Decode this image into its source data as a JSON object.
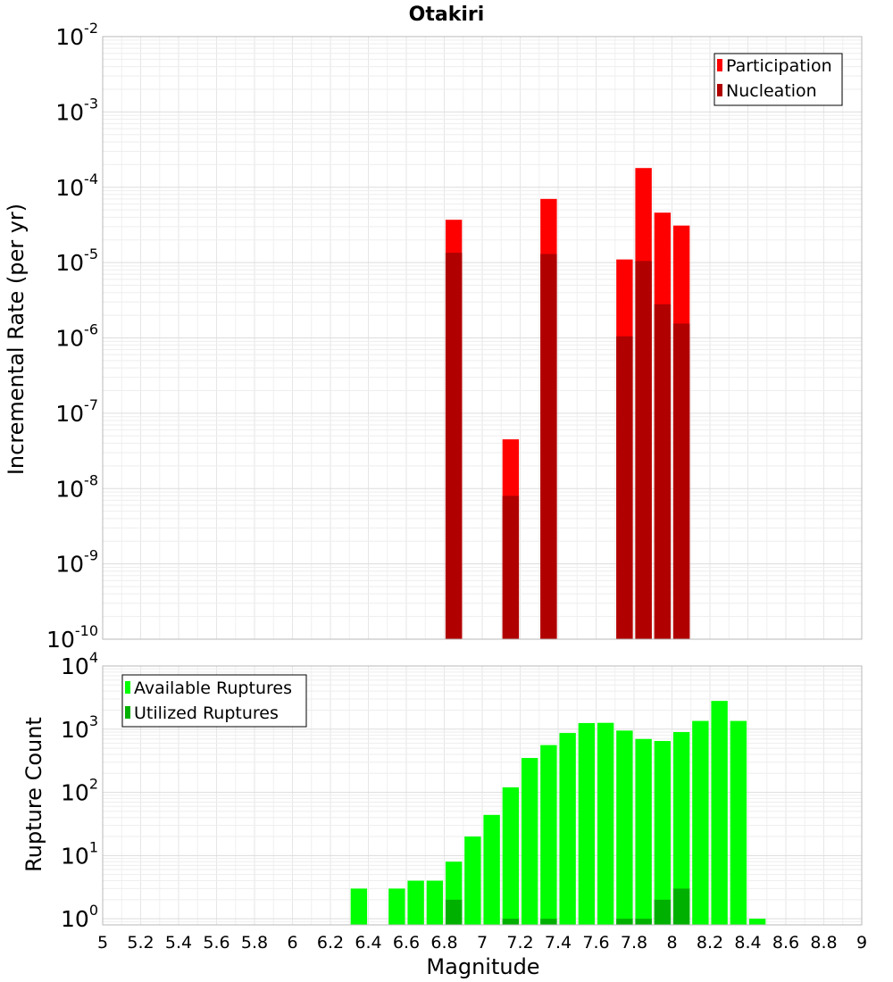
{
  "chart_data": [
    {
      "type": "bar",
      "title": "Otakiri",
      "xlabel": "",
      "ylabel": "Incremental Rate (per yr)",
      "yscale": "log",
      "ylim": [
        1e-10,
        0.01
      ],
      "xlim": [
        5,
        9
      ],
      "grid": true,
      "legend_position": "top-right",
      "y_ticks": [
        {
          "base": "10",
          "exp": "-10"
        },
        {
          "base": "10",
          "exp": "-9"
        },
        {
          "base": "10",
          "exp": "-8"
        },
        {
          "base": "10",
          "exp": "-7"
        },
        {
          "base": "10",
          "exp": "-6"
        },
        {
          "base": "10",
          "exp": "-5"
        },
        {
          "base": "10",
          "exp": "-4"
        },
        {
          "base": "10",
          "exp": "-3"
        },
        {
          "base": "10",
          "exp": "-2"
        }
      ],
      "series": [
        {
          "name": "Participation",
          "color": "#ff0000",
          "x": [
            6.85,
            7.15,
            7.35,
            7.75,
            7.85,
            7.95,
            8.05
          ],
          "values": [
            3.7e-05,
            4.5e-08,
            7e-05,
            1.1e-05,
            0.00018,
            4.6e-05,
            3.1e-05
          ]
        },
        {
          "name": "Nucleation",
          "color": "#b00000",
          "x": [
            6.85,
            7.15,
            7.35,
            7.75,
            7.85,
            7.95,
            8.05
          ],
          "values": [
            1.35e-05,
            8e-09,
            1.3e-05,
            1.05e-06,
            1.05e-05,
            2.8e-06,
            1.55e-06
          ]
        }
      ]
    },
    {
      "type": "bar",
      "title": "",
      "xlabel": "Magnitude",
      "ylabel": "Rupture Count",
      "yscale": "log",
      "ylim": [
        0.8,
        10000
      ],
      "xlim": [
        5,
        9
      ],
      "grid": true,
      "legend_position": "top-left",
      "y_ticks": [
        {
          "base": "10",
          "exp": "0"
        },
        {
          "base": "10",
          "exp": "1"
        },
        {
          "base": "10",
          "exp": "2"
        },
        {
          "base": "10",
          "exp": "3"
        },
        {
          "base": "10",
          "exp": "4"
        }
      ],
      "x_ticks": [
        "5",
        "5.2",
        "5.4",
        "5.6",
        "5.8",
        "6",
        "6.2",
        "6.4",
        "6.6",
        "6.8",
        "7",
        "7.2",
        "7.4",
        "7.6",
        "7.8",
        "8",
        "8.2",
        "8.4",
        "8.6",
        "8.8",
        "9"
      ],
      "series": [
        {
          "name": "Available Ruptures",
          "color": "#00ff00",
          "x": [
            6.35,
            6.55,
            6.65,
            6.75,
            6.85,
            6.95,
            7.05,
            7.15,
            7.25,
            7.35,
            7.45,
            7.55,
            7.65,
            7.75,
            7.85,
            7.95,
            8.05,
            8.15,
            8.25,
            8.35,
            8.45
          ],
          "values": [
            3,
            3,
            4,
            4,
            8,
            20,
            44,
            120,
            350,
            560,
            870,
            1250,
            1260,
            950,
            700,
            650,
            900,
            1350,
            2800,
            1350,
            1
          ]
        },
        {
          "name": "Utilized Ruptures",
          "color": "#00b000",
          "x": [
            6.85,
            7.15,
            7.35,
            7.75,
            7.85,
            7.95,
            8.05
          ],
          "values": [
            2,
            1,
            1,
            1,
            1,
            2,
            3
          ]
        }
      ]
    }
  ]
}
